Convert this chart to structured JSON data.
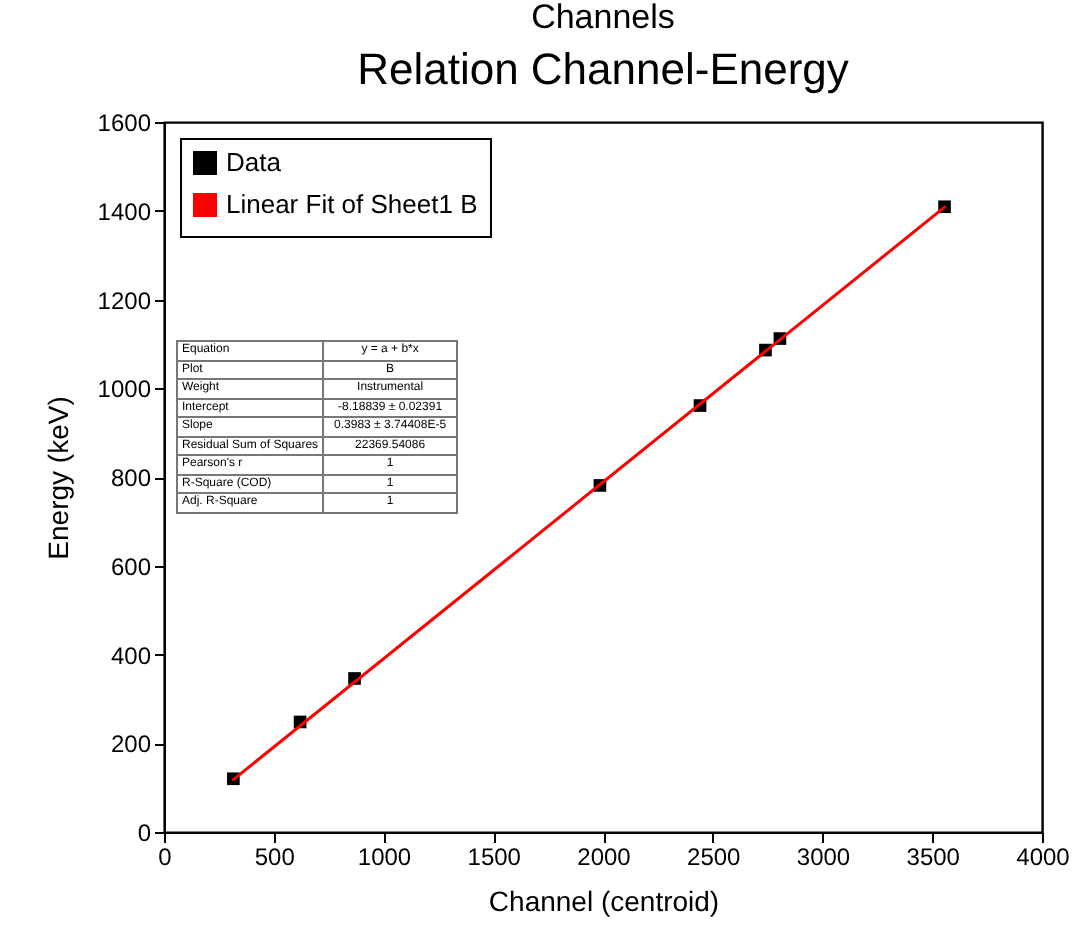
{
  "chart_data": {
    "type": "scatter",
    "title": "Relation Channel-Energy",
    "xlabel": "Channel (centroid)",
    "ylabel": "Energy (keV)",
    "annotations": [
      "Channels",
      "Equation",
      "y = a + b*x",
      "Plot",
      "B",
      "Weight",
      "Instrumental",
      "Intercept",
      "-8.18839 ± 0.02391",
      "Slope",
      "0.3983 ± 3.74408E-5",
      "Residual Sum of Squares",
      "22369.54086",
      "Pearson's r",
      "1",
      "R-Square (COD)",
      "1",
      "Adj. R-Square",
      "1"
    ],
    "series": [
      {
        "name": "Data",
        "marker": "square",
        "color": "#000000",
        "x": [
          316,
          620,
          868,
          1986,
          2442,
          2740,
          2806,
          3556
        ],
        "values": [
          120,
          248,
          346,
          781,
          961,
          1086,
          1112,
          1409
        ]
      },
      {
        "name": "Linear Fit of Sheet1 B",
        "type": "line",
        "color": "#ff0000",
        "x": [
          316,
          3556
        ],
        "values": [
          118,
          1408
        ]
      }
    ],
    "xlim": [
      0,
      4000
    ],
    "xticks": [
      0,
      500,
      1000,
      1500,
      2000,
      2500,
      3000,
      3500,
      4000
    ],
    "ylim": [
      0,
      1600
    ],
    "yticks": [
      0,
      200,
      400,
      600,
      800,
      1000,
      1200,
      1400,
      1600
    ],
    "legend": "top left",
    "grid": false
  }
}
